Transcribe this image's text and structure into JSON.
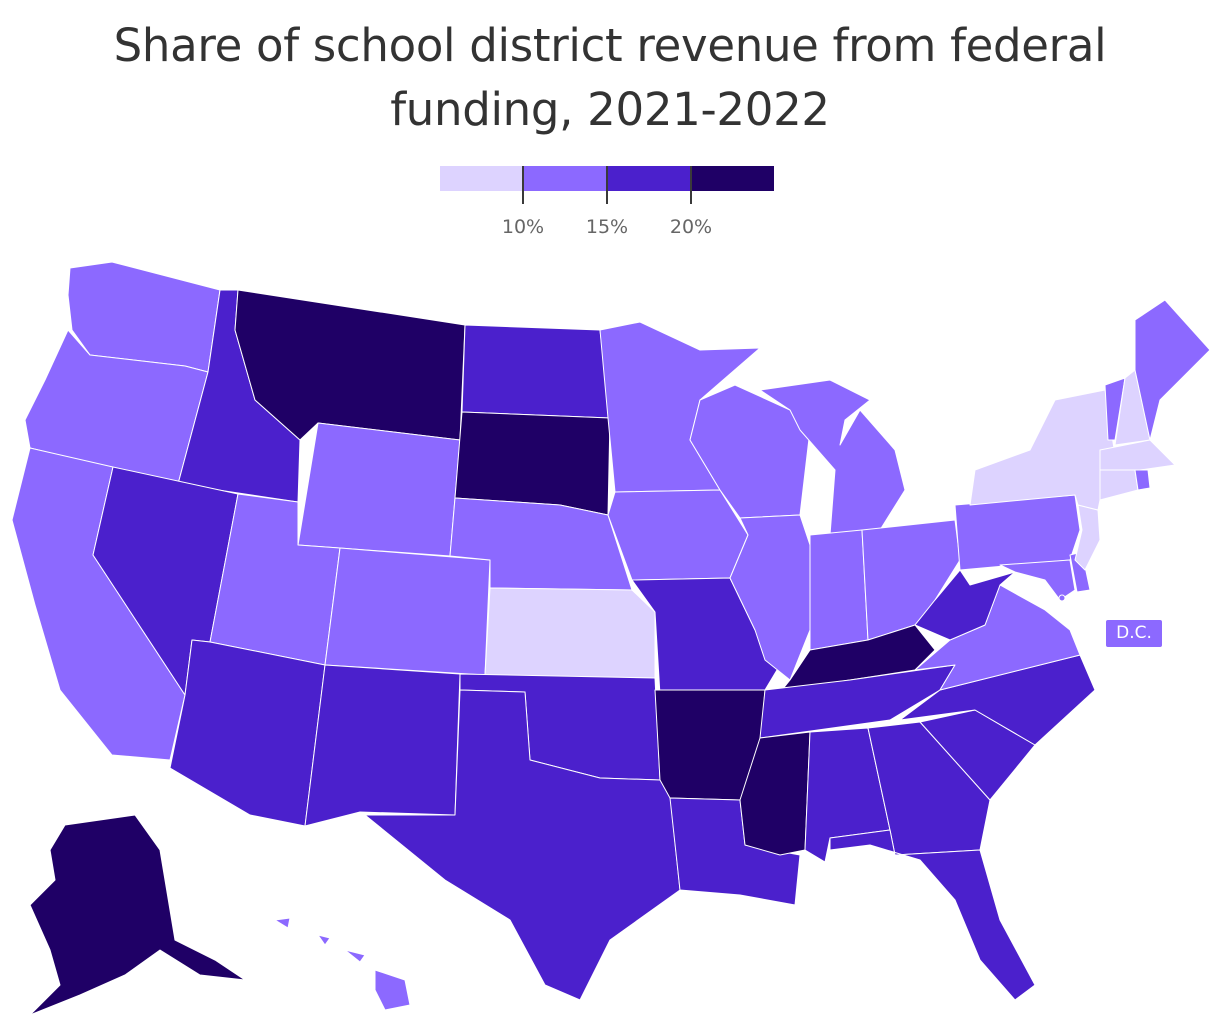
{
  "title": "Share of school district revenue from federal funding, 2021-2022",
  "colors": {
    "bin1": "#ddd3ff",
    "bin2": "#8c69ff",
    "bin3": "#4b20cc",
    "bin4": "#1f0066"
  },
  "legend": {
    "bins": [
      "bin1",
      "bin2",
      "bin3",
      "bin4"
    ],
    "thresholds": [
      "10%",
      "15%",
      "20%"
    ]
  },
  "dc_label": "D.C.",
  "states": {
    "WA": "bin2",
    "OR": "bin2",
    "CA": "bin2",
    "ID": "bin3",
    "NV": "bin3",
    "MT": "bin4",
    "WY": "bin2",
    "UT": "bin2",
    "AZ": "bin3",
    "CO": "bin2",
    "NM": "bin3",
    "ND": "bin3",
    "SD": "bin4",
    "NE": "bin2",
    "KS": "bin1",
    "OK": "bin3",
    "TX": "bin3",
    "MN": "bin2",
    "IA": "bin2",
    "MO": "bin3",
    "AR": "bin4",
    "LA": "bin3",
    "WI": "bin2",
    "IL": "bin2",
    "MI": "bin2",
    "IN": "bin2",
    "OH": "bin2",
    "KY": "bin4",
    "TN": "bin3",
    "MS": "bin4",
    "AL": "bin3",
    "GA": "bin3",
    "FL": "bin3",
    "SC": "bin3",
    "NC": "bin3",
    "VA": "bin2",
    "WV": "bin3",
    "PA": "bin2",
    "NY": "bin1",
    "VT": "bin2",
    "NH": "bin1",
    "ME": "bin2",
    "MA": "bin1",
    "RI": "bin2",
    "CT": "bin1",
    "NJ": "bin1",
    "DE": "bin2",
    "MD": "bin2",
    "AK": "bin4",
    "HI": "bin2",
    "DC": "bin2"
  }
}
